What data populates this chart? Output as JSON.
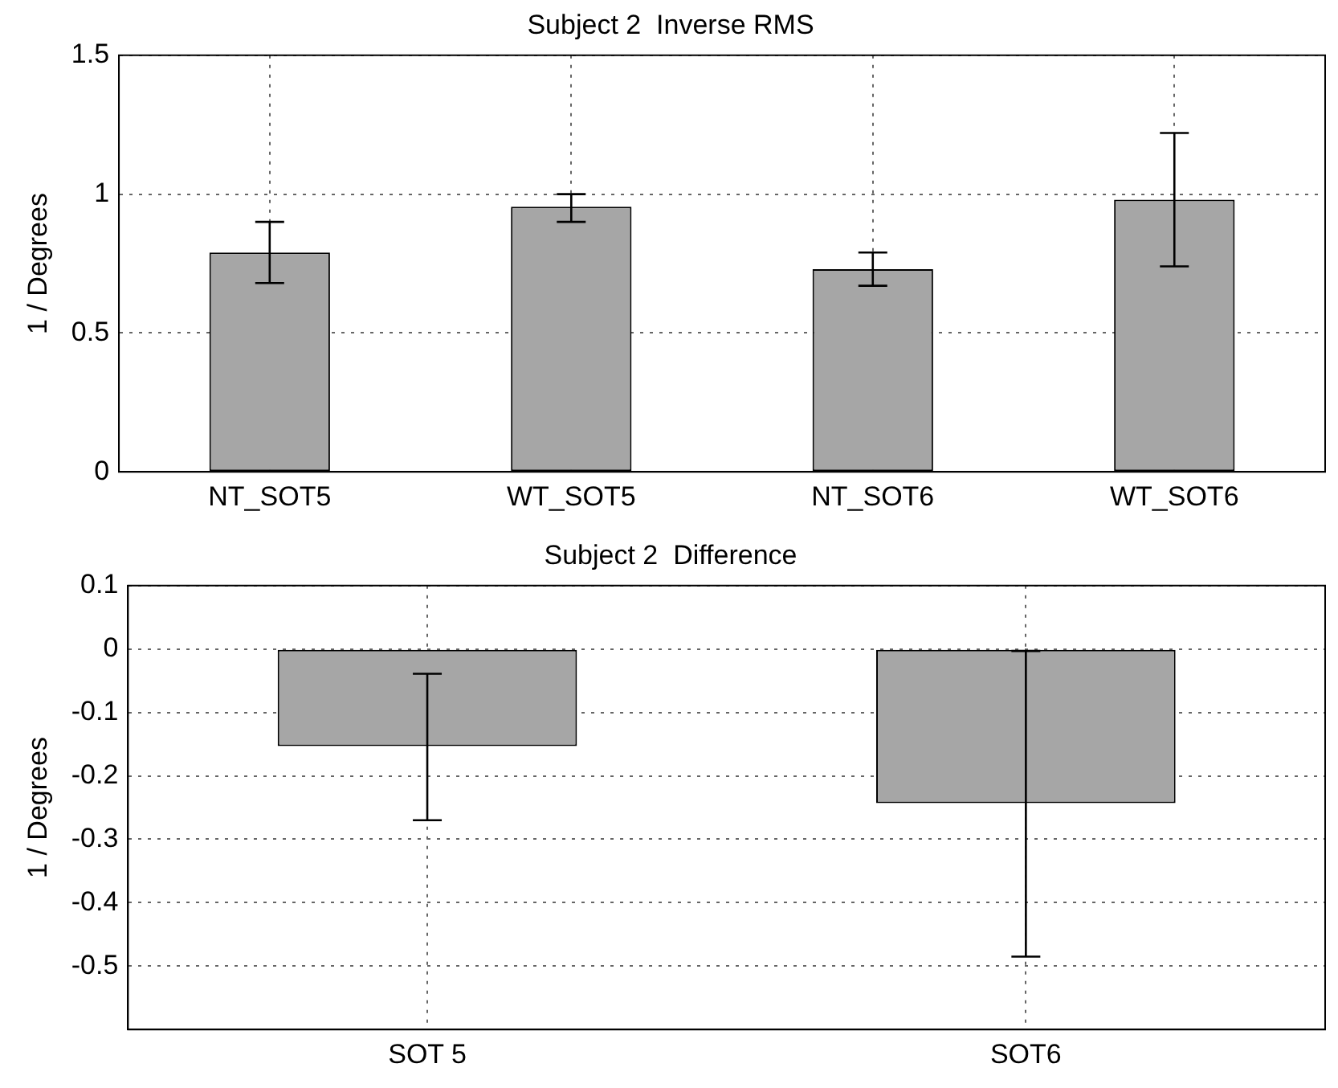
{
  "chart_data": [
    {
      "type": "bar",
      "title": "Subject 2  Inverse RMS",
      "ylabel": "1 / Degrees",
      "categories": [
        "NT_SOT5",
        "WT_SOT5",
        "NT_SOT6",
        "WT_SOT6"
      ],
      "values": [
        0.79,
        0.955,
        0.73,
        0.98
      ],
      "errors": [
        [
          0.68,
          0.9
        ],
        [
          0.9,
          1.0
        ],
        [
          0.67,
          0.79
        ],
        [
          0.74,
          1.22
        ]
      ],
      "color": "#a6a6a6",
      "ylim": [
        0,
        1.5
      ],
      "yticks": [
        0,
        0.5,
        1,
        1.5
      ],
      "grid": true,
      "legend": false
    },
    {
      "type": "bar",
      "title": "Subject 2  Difference",
      "ylabel": "1 / Degrees",
      "categories": [
        "SOT 5",
        "SOT6"
      ],
      "values": [
        -0.153,
        -0.243
      ],
      "errors": [
        [
          -0.27,
          -0.039
        ],
        [
          -0.485,
          -0.003
        ]
      ],
      "color": "#a6a6a6",
      "ylim": [
        -0.6,
        0.1
      ],
      "yticks": [
        {
          "value": -0.6,
          "label": null
        },
        -0.5,
        -0.4,
        -0.3,
        -0.2,
        -0.1,
        0,
        0.1
      ],
      "grid": true,
      "legend": false
    }
  ]
}
